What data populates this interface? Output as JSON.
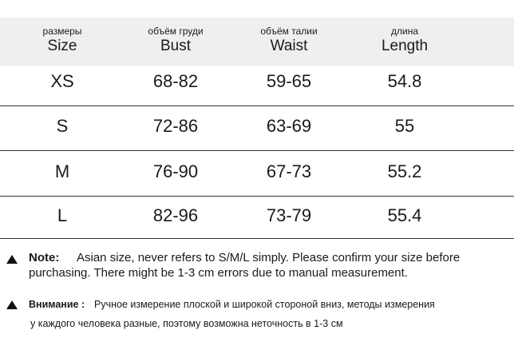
{
  "table": {
    "columns": [
      {
        "ru": "размеры",
        "en": "Size"
      },
      {
        "ru": "объём груди",
        "en": "Bust"
      },
      {
        "ru": "объём талии",
        "en": "Waist"
      },
      {
        "ru": "длина",
        "en": "Length"
      }
    ],
    "rows": [
      [
        "XS",
        "68-82",
        "59-65",
        "54.8"
      ],
      [
        "S",
        "72-86",
        "63-69",
        "55"
      ],
      [
        "M",
        "76-90",
        "67-73",
        "55.2"
      ],
      [
        "L",
        "82-96",
        "73-79",
        "55.4"
      ]
    ]
  },
  "notes": [
    {
      "label": "Note:",
      "lines": [
        "Asian size, never refers to S/M/L simply. Please confirm your size before",
        "purchasing. There might be 1-3 cm errors due to manual measurement."
      ]
    },
    {
      "label": "Внимание :",
      "lines": [
        "Ручное измерение плоской и широкой стороной вниз, методы измерения",
        "у каждого человека разные, поэтому возможна неточность в 1-3 см"
      ]
    }
  ]
}
